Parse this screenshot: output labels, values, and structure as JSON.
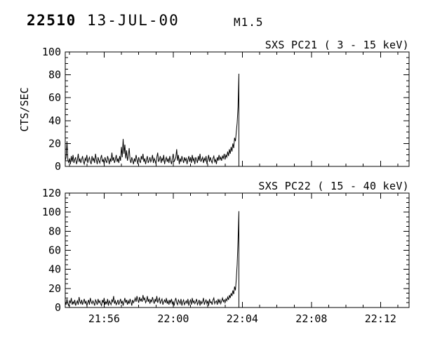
{
  "header": {
    "burst_number": "22510",
    "date": "13-JUL-00",
    "flare_class": "M1.5"
  },
  "colors": {
    "foreground": "#000000",
    "background": "#ffffff"
  },
  "chart_data": [
    {
      "type": "line",
      "title": "SXS PC21 (  3 - 15 keV)",
      "ylabel": "CTS/SEC",
      "ylim": [
        0,
        100
      ],
      "y_major_ticks": [
        0,
        20,
        40,
        60,
        80,
        100
      ],
      "y_minor_step": 5,
      "grid": false,
      "x_axis": {
        "units": "minutes after 21:00 UT",
        "start": 53.75,
        "end": 73.65,
        "major_ticks": [
          56,
          60,
          64,
          68,
          72
        ],
        "major_tick_labels": [
          "21:56",
          "22:00",
          "22:04",
          "22:08",
          "22:12"
        ],
        "minor_step": 1
      },
      "series": {
        "name": "SXS PC21 counts",
        "t0": 53.75,
        "dt": 0.05,
        "ends_with_vertical_drop_to_zero": true,
        "values": [
          5,
          8,
          22,
          6,
          3,
          7,
          2,
          9,
          4,
          10,
          3,
          6,
          8,
          2,
          5,
          11,
          4,
          7,
          3,
          6,
          9,
          4,
          2,
          7,
          5,
          10,
          3,
          6,
          8,
          4,
          2,
          9,
          5,
          7,
          3,
          11,
          6,
          2,
          8,
          5,
          3,
          7,
          10,
          4,
          6,
          2,
          8,
          5,
          3,
          9,
          6,
          2,
          7,
          4,
          12,
          5,
          8,
          3,
          6,
          10,
          4,
          7,
          3,
          9,
          5,
          17,
          8,
          24,
          11,
          19,
          7,
          14,
          5,
          9,
          16,
          6,
          3,
          8,
          5,
          2,
          7,
          4,
          10,
          6,
          2,
          8,
          5,
          3,
          9,
          6,
          11,
          4,
          7,
          2,
          6,
          9,
          3,
          5,
          8,
          4,
          6,
          10,
          3,
          7,
          5,
          2,
          8,
          12,
          4,
          6,
          9,
          3,
          7,
          5,
          10,
          2,
          6,
          8,
          4,
          7,
          3,
          9,
          5,
          2,
          7,
          11,
          4,
          6,
          8,
          15,
          5,
          10,
          2,
          7,
          4,
          9,
          6,
          3,
          8,
          5,
          7,
          2,
          6,
          9,
          4,
          8,
          3,
          10,
          5,
          7,
          2,
          8,
          6,
          3,
          9,
          5,
          11,
          4,
          6,
          8,
          3,
          7,
          5,
          9,
          2,
          6,
          10,
          4,
          8,
          5,
          3,
          7,
          9,
          4,
          6,
          2,
          8,
          5,
          10,
          6,
          8,
          5,
          9,
          7,
          11,
          6,
          10,
          8,
          13,
          9,
          15,
          11,
          17,
          13,
          20,
          16,
          25,
          22,
          30,
          38,
          52,
          81
        ]
      }
    },
    {
      "type": "line",
      "title": "SXS PC22 ( 15 - 40 keV)",
      "ylabel": "",
      "ylim": [
        0,
        120
      ],
      "y_major_ticks": [
        0,
        20,
        40,
        60,
        80,
        100,
        120
      ],
      "y_minor_step": 5,
      "grid": false,
      "x_axis": {
        "units": "minutes after 21:00 UT",
        "start": 53.75,
        "end": 73.65,
        "major_ticks": [
          56,
          60,
          64,
          68,
          72
        ],
        "major_tick_labels": [
          "21:56",
          "22:00",
          "22:04",
          "22:08",
          "22:12"
        ],
        "minor_step": 1
      },
      "series": {
        "name": "SXS PC22 counts",
        "t0": 53.75,
        "dt": 0.05,
        "ends_with_vertical_drop_to_zero": true,
        "values": [
          6,
          3,
          9,
          4,
          2,
          7,
          5,
          10,
          3,
          6,
          4,
          8,
          2,
          5,
          7,
          3,
          11,
          6,
          4,
          8,
          3,
          6,
          9,
          4,
          7,
          2,
          5,
          8,
          3,
          10,
          6,
          4,
          7,
          5,
          2,
          8,
          6,
          3,
          9,
          5,
          7,
          4,
          2,
          8,
          5,
          10,
          3,
          6,
          4,
          9,
          2,
          7,
          5,
          3,
          8,
          6,
          12,
          4,
          7,
          3,
          5,
          8,
          3,
          6,
          9,
          4,
          7,
          2,
          6,
          10,
          5,
          8,
          3,
          7,
          4,
          9,
          6,
          2,
          8,
          5,
          7,
          10,
          6,
          12,
          8,
          5,
          11,
          7,
          9,
          6,
          13,
          8,
          10,
          5,
          7,
          12,
          6,
          9,
          4,
          8,
          6,
          11,
          7,
          4,
          9,
          6,
          12,
          5,
          8,
          10,
          4,
          7,
          9,
          3,
          6,
          8,
          5,
          10,
          4,
          7,
          3,
          8,
          5,
          9,
          4,
          6,
          2,
          7,
          10,
          5,
          3,
          8,
          6,
          4,
          9,
          2,
          6,
          8,
          3,
          5,
          7,
          4,
          9,
          2,
          6,
          8,
          3,
          10,
          5,
          7,
          4,
          6,
          9,
          3,
          5,
          8,
          2,
          7,
          4,
          6,
          10,
          3,
          6,
          8,
          4,
          7,
          2,
          9,
          5,
          6,
          3,
          8,
          10,
          4,
          6,
          7,
          3,
          9,
          5,
          8,
          4,
          7,
          10,
          6,
          8,
          5,
          9,
          7,
          11,
          8,
          13,
          10,
          15,
          12,
          18,
          14,
          22,
          18,
          30,
          45,
          70,
          101
        ]
      }
    }
  ]
}
